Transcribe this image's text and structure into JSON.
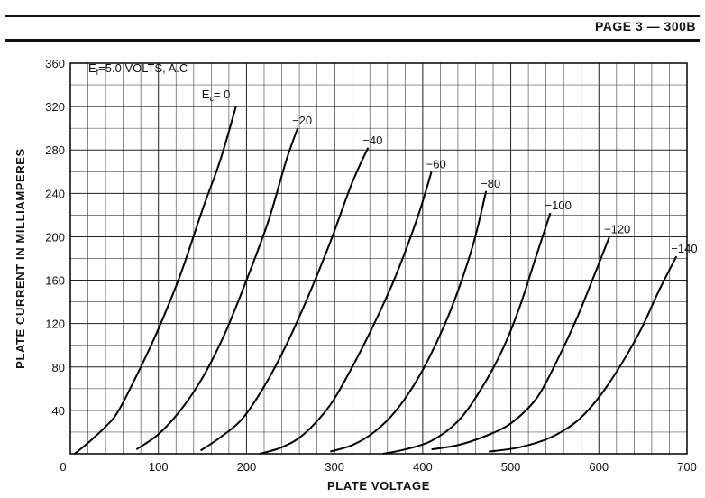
{
  "header": {
    "page_label": "PAGE 3 — 300B"
  },
  "chart_data": {
    "type": "line",
    "xlabel": "PLATE VOLTAGE",
    "ylabel": "PLATE CURRENT IN MILLIAMPERES",
    "xlim": [
      0,
      700
    ],
    "ylim": [
      0,
      360
    ],
    "x_ticks": [
      "0",
      "100",
      "200",
      "300",
      "400",
      "500",
      "600",
      "700"
    ],
    "y_ticks": [
      "40",
      "80",
      "120",
      "160",
      "200",
      "240",
      "280",
      "320",
      "360"
    ],
    "grid": true,
    "annotation": {
      "text": "Ef=5.0 VOLTS, A.C"
    },
    "series": [
      {
        "name": "Ec= 0",
        "x": [
          5,
          20,
          40,
          55,
          80,
          100,
          125,
          150,
          170,
          188
        ],
        "y": [
          0,
          10,
          25,
          40,
          80,
          115,
          165,
          225,
          270,
          320
        ]
      },
      {
        "name": "−20",
        "x": [
          75,
          100,
          125,
          150,
          175,
          200,
          225,
          245,
          258
        ],
        "y": [
          4,
          18,
          40,
          70,
          110,
          160,
          215,
          270,
          300
        ]
      },
      {
        "name": "−40",
        "x": [
          148,
          170,
          195,
          220,
          245,
          270,
          295,
          320,
          338
        ],
        "y": [
          3,
          15,
          32,
          62,
          100,
          145,
          195,
          250,
          282
        ]
      },
      {
        "name": "−60",
        "x": [
          215,
          240,
          265,
          295,
          320,
          345,
          370,
          395,
          410
        ],
        "y": [
          0,
          6,
          18,
          45,
          80,
          120,
          165,
          220,
          260
        ]
      },
      {
        "name": "−80",
        "x": [
          295,
          320,
          345,
          370,
          395,
          420,
          440,
          458,
          472
        ],
        "y": [
          2,
          8,
          20,
          40,
          70,
          110,
          150,
          195,
          242
        ]
      },
      {
        "name": "−100",
        "x": [
          355,
          380,
          410,
          440,
          465,
          490,
          510,
          528,
          545
        ],
        "y": [
          0,
          4,
          12,
          30,
          58,
          95,
          135,
          180,
          222
        ]
      },
      {
        "name": "−120",
        "x": [
          410,
          440,
          470,
          500,
          530,
          555,
          575,
          595,
          612
        ],
        "y": [
          4,
          8,
          16,
          28,
          52,
          90,
          125,
          165,
          200
        ]
      },
      {
        "name": "−140",
        "x": [
          475,
          510,
          545,
          575,
          600,
          625,
          648,
          668,
          688
        ],
        "y": [
          2,
          6,
          15,
          30,
          52,
          82,
          115,
          150,
          182
        ]
      }
    ]
  }
}
